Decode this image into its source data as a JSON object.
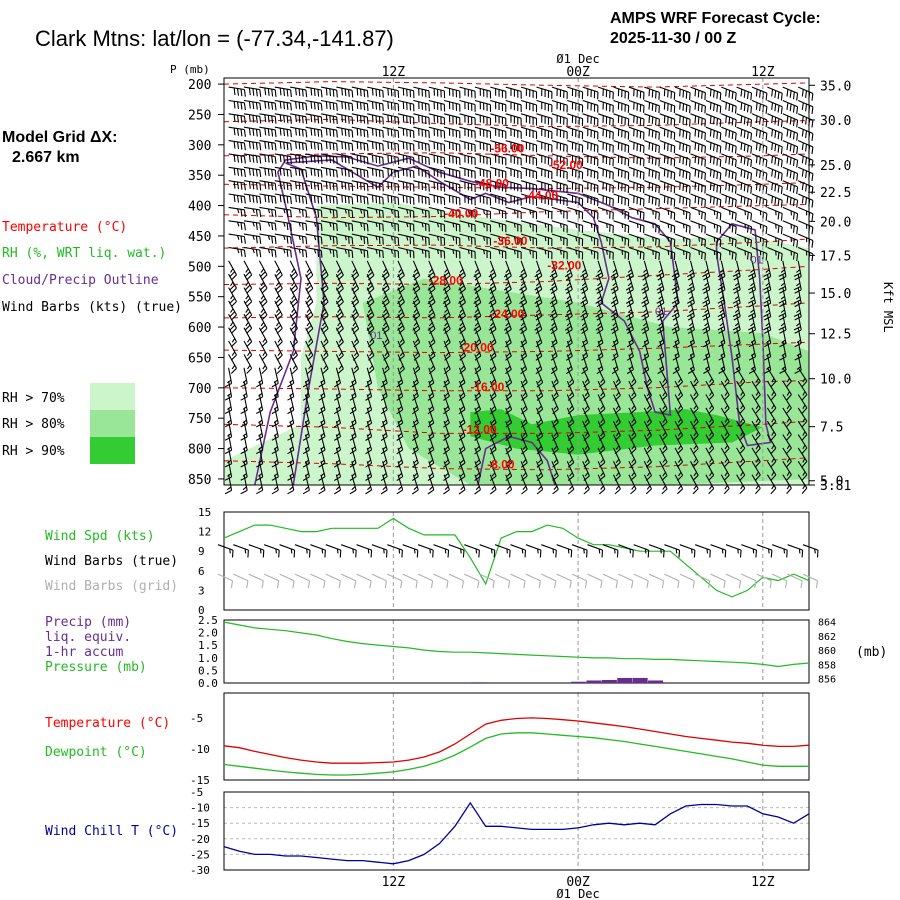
{
  "header": {
    "title": "Clark Mtns:  lat/lon = (-77.34,-141.87)",
    "cycle_line1": "AMPS WRF Forecast Cycle:",
    "cycle_line2": "2025-11-30 / 00  Z"
  },
  "left_labels": {
    "grid_line1": "Model Grid ΔX:",
    "grid_line2": "2.667 km",
    "temperature": "Temperature (°C)",
    "rh": "RH (%, WRT liq. wat.)",
    "cloud": "Cloud/Precip Outline",
    "wind_barbs": "Wind Barbs (kts) (true)",
    "rh70": "RH > 70%",
    "rh80": "RH > 80%",
    "rh90": "RH > 90%"
  },
  "colors": {
    "temperature": "#ff0000",
    "temperature_contour": "#e00000",
    "rh70": "#ccf5cc",
    "rh80": "#99e699",
    "rh90": "#33cc33",
    "cloud": "#6a2c91",
    "wind_speed": "#22bb22",
    "wind_true": "#000000",
    "wind_grid": "#b0b0b0",
    "precip": "#6a2c91",
    "pressure": "#22bb22",
    "dewpoint": "#22bb22",
    "wind_chill": "#0000a0"
  },
  "time_axis": {
    "top_date": "Ø1 Dec",
    "bottom_date": "Ø1 Dec",
    "ticks": [
      {
        "label": "12Z",
        "x": 12
      },
      {
        "label": "00Z",
        "x": 24
      },
      {
        "label": "12Z",
        "x": 36
      }
    ],
    "xlim": [
      1,
      39
    ]
  },
  "chart_data": [
    {
      "type": "line",
      "panel": "vertical-cross-section",
      "ylabel_left": "P (mb)",
      "ylabel_right": "Kft MSL",
      "pressure_ticks": [
        "200",
        "250",
        "300",
        "350",
        "400",
        "450",
        "500",
        "550",
        "600",
        "650",
        "700",
        "750",
        "800",
        "850"
      ],
      "ylim_mb": [
        190,
        860
      ],
      "height_ticks": [
        {
          "label": "35.0",
          "p": 202
        },
        {
          "label": "30.0",
          "p": 259
        },
        {
          "label": "25.0",
          "p": 333
        },
        {
          "label": "22.5",
          "p": 378
        },
        {
          "label": "20.0",
          "p": 426
        },
        {
          "label": "17.5",
          "p": 482
        },
        {
          "label": "15.0",
          "p": 544
        },
        {
          "label": "12.5",
          "p": 611
        },
        {
          "label": "10.0",
          "p": 685
        },
        {
          "label": "7.5",
          "p": 764
        },
        {
          "label": "5.0",
          "p": 853
        },
        {
          "label": "3.81",
          "p": 900
        }
      ],
      "temperature_labels": [
        {
          "label": "-56.00",
          "x": 18.3,
          "p": 313
        },
        {
          "label": "-52.00",
          "x": 22.1,
          "p": 340
        },
        {
          "label": "-48.00",
          "x": 17.3,
          "p": 370
        },
        {
          "label": "-44.00",
          "x": 20.5,
          "p": 390
        },
        {
          "label": "-40.00",
          "x": 15.3,
          "p": 420
        },
        {
          "label": "-36.00",
          "x": 18.5,
          "p": 465
        },
        {
          "label": "-32.00",
          "x": 22.0,
          "p": 505
        },
        {
          "label": "-28.00",
          "x": 14.3,
          "p": 530
        },
        {
          "label": "-24.00",
          "x": 18.3,
          "p": 585
        },
        {
          "label": "-20.00",
          "x": 16.3,
          "p": 640
        },
        {
          "label": "-16.00",
          "x": 17.0,
          "p": 705
        },
        {
          "label": "-12.00",
          "x": 16.5,
          "p": 775
        },
        {
          "label": "-8.00",
          "x": 18.1,
          "p": 833
        }
      ],
      "cloud_labels": [
        {
          "label": "01",
          "x": 10.5,
          "p": 620
        },
        {
          "label": "01",
          "x": 29.0,
          "p": 580
        },
        {
          "label": "01",
          "x": 35.2,
          "p": 495
        }
      ]
    },
    {
      "type": "line",
      "panel": "wind",
      "labels": [
        "Wind Spd (kts)",
        "Wind Barbs (true)",
        "Wind Barbs (grid)"
      ],
      "y_ticks": [
        "15",
        "12",
        "9",
        "6",
        "3",
        "0"
      ],
      "ylim": [
        0,
        15
      ],
      "series": [
        {
          "name": "Wind Spd (kts)",
          "x": [
            1,
            2,
            3,
            4,
            5,
            6,
            7,
            8,
            9,
            10,
            11,
            12,
            13,
            14,
            15,
            16,
            17,
            18,
            19,
            20,
            21,
            22,
            23,
            24,
            25,
            26,
            27,
            28,
            29,
            30,
            31,
            32,
            33,
            34,
            35,
            36,
            37,
            38,
            39
          ],
          "values": [
            11,
            12,
            13,
            13,
            12.5,
            12,
            12,
            12.5,
            12.5,
            12.5,
            12.5,
            14,
            12.5,
            11.5,
            11.5,
            11.5,
            8,
            4,
            11,
            12,
            12,
            13,
            12.5,
            11,
            10,
            10,
            9.5,
            9,
            9,
            9,
            7,
            5,
            3,
            2,
            3,
            5,
            4.5,
            5.5,
            4.5
          ]
        }
      ]
    },
    {
      "type": "line",
      "panel": "precip-pressure",
      "labels": [
        "Precip (mm)",
        "liq. equiv.",
        "1-hr accum",
        "Pressure (mb)"
      ],
      "y_ticks_left": [
        "2.5",
        "2.0",
        "1.5",
        "1.0",
        "0.5",
        "0.0"
      ],
      "ylim_left": [
        0,
        2.5
      ],
      "y_ticks_right": [
        "864",
        "862",
        "860",
        "858",
        "856"
      ],
      "ylim_right": [
        855.4,
        864.2
      ],
      "right_unit": "(mb)",
      "series": [
        {
          "name": "Pressure (mb)",
          "x": [
            1,
            2,
            3,
            4,
            5,
            6,
            7,
            8,
            9,
            10,
            11,
            12,
            13,
            14,
            15,
            16,
            17,
            18,
            19,
            20,
            21,
            22,
            23,
            24,
            25,
            26,
            27,
            28,
            29,
            30,
            31,
            32,
            33,
            34,
            35,
            36,
            37,
            38,
            39
          ],
          "values": [
            863.9,
            863.5,
            863.1,
            862.9,
            862.7,
            862.4,
            862.1,
            861.6,
            861.2,
            860.9,
            860.7,
            860.5,
            860.3,
            860.0,
            859.8,
            859.7,
            859.7,
            859.6,
            859.5,
            859.4,
            859.3,
            859.2,
            859.1,
            859.0,
            858.9,
            858.9,
            858.8,
            858.8,
            858.7,
            858.7,
            858.6,
            858.5,
            858.4,
            858.3,
            858.2,
            858.0,
            857.7,
            858.0,
            858.2
          ]
        },
        {
          "name": "Precip (mm)",
          "x": [
            17.5,
            24,
            25,
            26,
            27,
            28,
            29
          ],
          "values": [
            0.03,
            0.05,
            0.1,
            0.12,
            0.2,
            0.2,
            0.1
          ]
        }
      ]
    },
    {
      "type": "line",
      "panel": "temperature-dewpoint",
      "labels": [
        "Temperature (°C)",
        "Dewpoint (°C)"
      ],
      "y_ticks": [
        "-5",
        "-10",
        "-15"
      ],
      "ylim": [
        -15,
        -1
      ],
      "series": [
        {
          "name": "Temperature (°C)",
          "x": [
            1,
            2,
            3,
            4,
            5,
            6,
            7,
            8,
            9,
            10,
            11,
            12,
            13,
            14,
            15,
            16,
            17,
            18,
            19,
            20,
            21,
            22,
            23,
            24,
            25,
            26,
            27,
            28,
            29,
            30,
            31,
            32,
            33,
            34,
            35,
            36,
            37,
            38,
            39
          ],
          "values": [
            -9.5,
            -9.8,
            -10.4,
            -10.9,
            -11.4,
            -11.8,
            -12.1,
            -12.3,
            -12.3,
            -12.3,
            -12.2,
            -12.1,
            -11.8,
            -11.3,
            -10.5,
            -9.2,
            -7.6,
            -6.0,
            -5.4,
            -5.1,
            -5.0,
            -5.1,
            -5.3,
            -5.5,
            -5.8,
            -6.1,
            -6.4,
            -6.8,
            -7.2,
            -7.6,
            -8.0,
            -8.3,
            -8.6,
            -8.9,
            -9.1,
            -9.4,
            -9.6,
            -9.6,
            -9.4
          ]
        },
        {
          "name": "Dewpoint (°C)",
          "x": [
            1,
            2,
            3,
            4,
            5,
            6,
            7,
            8,
            9,
            10,
            11,
            12,
            13,
            14,
            15,
            16,
            17,
            18,
            19,
            20,
            21,
            22,
            23,
            24,
            25,
            26,
            27,
            28,
            29,
            30,
            31,
            32,
            33,
            34,
            35,
            36,
            37,
            38,
            39
          ],
          "values": [
            -12.5,
            -12.8,
            -13.1,
            -13.4,
            -13.7,
            -13.9,
            -14.1,
            -14.2,
            -14.2,
            -14.1,
            -13.9,
            -13.7,
            -13.3,
            -12.8,
            -12.0,
            -11.0,
            -9.7,
            -8.3,
            -7.6,
            -7.4,
            -7.4,
            -7.6,
            -7.8,
            -8.0,
            -8.2,
            -8.5,
            -8.8,
            -9.2,
            -9.6,
            -10.0,
            -10.4,
            -10.8,
            -11.2,
            -11.6,
            -12.1,
            -12.6,
            -12.8,
            -12.8,
            -12.8
          ]
        }
      ]
    },
    {
      "type": "line",
      "panel": "wind-chill",
      "labels": [
        "Wind Chill T (°C)"
      ],
      "y_ticks": [
        "-10",
        "-15",
        "-20",
        "-25",
        "-30"
      ],
      "extra_tick": "-5",
      "ylim": [
        -30,
        -5
      ],
      "series": [
        {
          "name": "Wind Chill T (°C)",
          "x": [
            1,
            2,
            3,
            4,
            5,
            6,
            7,
            8,
            9,
            10,
            11,
            12,
            13,
            14,
            15,
            16,
            17,
            18,
            19,
            20,
            21,
            22,
            23,
            24,
            25,
            26,
            27,
            28,
            29,
            30,
            31,
            32,
            33,
            34,
            35,
            36,
            37,
            38,
            39
          ],
          "values": [
            -22.5,
            -24,
            -25,
            -25,
            -25.5,
            -25.5,
            -26,
            -26.5,
            -27,
            -27,
            -27.5,
            -28,
            -27,
            -25,
            -21.5,
            -16,
            -8.5,
            -16,
            -16,
            -16.5,
            -17,
            -17,
            -17,
            -16.5,
            -15.5,
            -15,
            -15.5,
            -15,
            -15.5,
            -12,
            -9.5,
            -9,
            -9,
            -9.5,
            -9.5,
            -12,
            -13,
            -15,
            -12
          ]
        }
      ]
    }
  ]
}
